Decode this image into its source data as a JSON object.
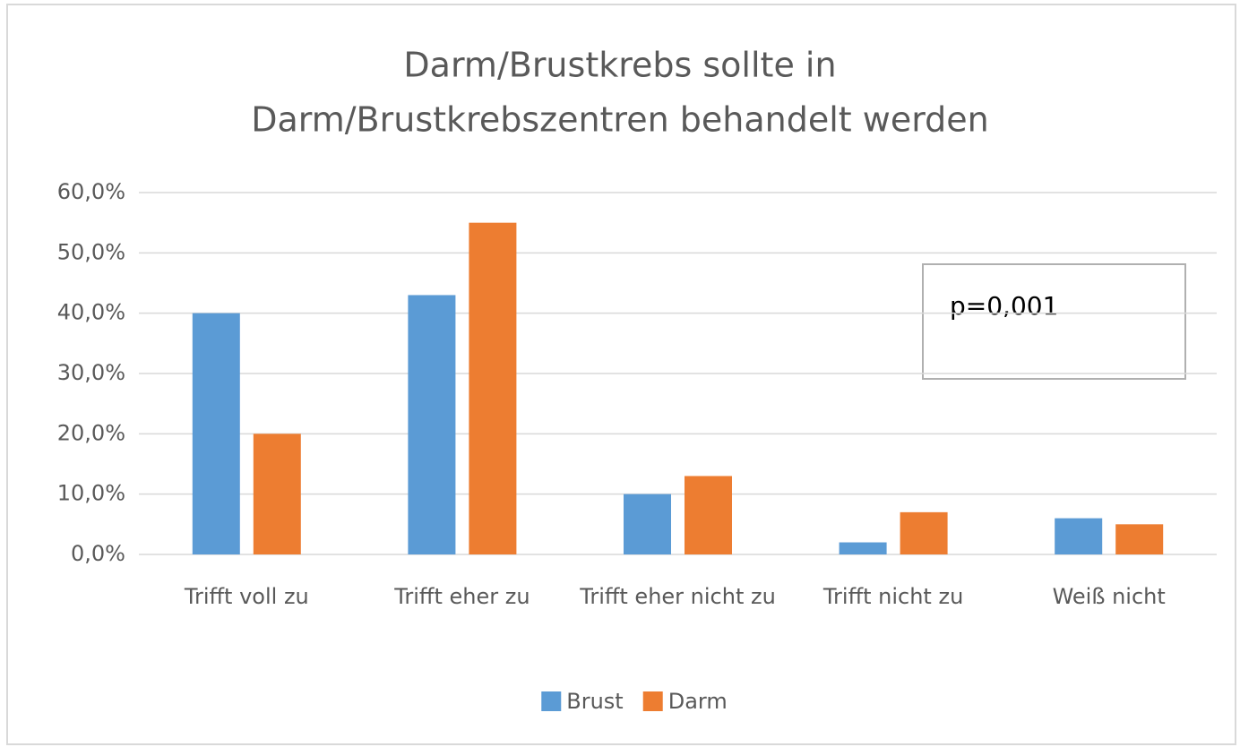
{
  "chart_data": {
    "type": "bar",
    "title": [
      "Darm/Brustkrebs sollte in",
      "Darm/Brustkrebszentren behandelt werden"
    ],
    "categories": [
      "Trifft voll zu",
      "Trifft eher zu",
      "Trifft eher nicht zu",
      "Trifft nicht zu",
      "Weiß nicht"
    ],
    "series": [
      {
        "name": "Brust",
        "color": "#5b9bd5",
        "values": [
          40,
          43,
          10,
          2,
          6
        ]
      },
      {
        "name": "Darm",
        "color": "#ed7d31",
        "values": [
          20,
          55,
          13,
          7,
          5
        ]
      }
    ],
    "ylim": [
      0,
      60
    ],
    "yticks": [
      {
        "value": 0,
        "label": "0,0%"
      },
      {
        "value": 10,
        "label": "10,0%"
      },
      {
        "value": 20,
        "label": "20,0%"
      },
      {
        "value": 30,
        "label": "30,0%"
      },
      {
        "value": 40,
        "label": "40,0%"
      },
      {
        "value": 50,
        "label": "50,0%"
      },
      {
        "value": 60,
        "label": "60,0%"
      }
    ],
    "grid": true,
    "legend": "bottom",
    "annotation": "p=0,001"
  }
}
